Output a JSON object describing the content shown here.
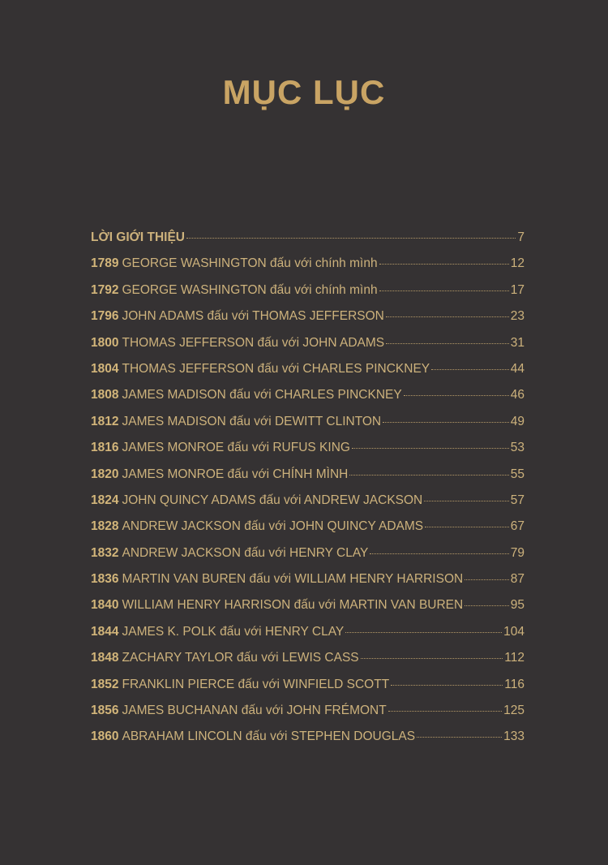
{
  "title": "MỤC LỤC",
  "colors": {
    "background": "#353233",
    "gold": "#c9a464"
  },
  "intro": {
    "label": "LỜI GIỚI THIỆU",
    "page": "7"
  },
  "entries": [
    {
      "year": "1789",
      "text": "GEORGE WASHINGTON đấu với chính mình",
      "page": "12"
    },
    {
      "year": "1792",
      "text": "GEORGE WASHINGTON đấu với chính mình",
      "page": "17"
    },
    {
      "year": "1796",
      "text": "JOHN ADAMS đấu với THOMAS JEFFERSON",
      "page": "23"
    },
    {
      "year": "1800",
      "text": "THOMAS JEFFERSON đấu với JOHN ADAMS",
      "page": "31"
    },
    {
      "year": "1804",
      "text": "THOMAS JEFFERSON đấu với CHARLES PINCKNEY",
      "page": "44"
    },
    {
      "year": "1808",
      "text": "JAMES MADISON đấu với CHARLES PINCKNEY",
      "page": "46"
    },
    {
      "year": "1812",
      "text": "JAMES MADISON đấu với DEWITT CLINTON",
      "page": "49"
    },
    {
      "year": "1816",
      "text": "JAMES MONROE đấu với RUFUS KING",
      "page": "53"
    },
    {
      "year": "1820",
      "text": "JAMES MONROE đấu với CHÍNH MÌNH",
      "page": "55"
    },
    {
      "year": "1824",
      "text": "JOHN QUINCY ADAMS đấu với ANDREW JACKSON",
      "page": "57"
    },
    {
      "year": "1828",
      "text": "ANDREW JACKSON đấu với JOHN QUINCY ADAMS",
      "page": "67"
    },
    {
      "year": "1832",
      "text": "ANDREW JACKSON đấu với HENRY CLAY",
      "page": "79"
    },
    {
      "year": "1836",
      "text": "MARTIN VAN BUREN đấu với WILLIAM HENRY HARRISON",
      "page": "87"
    },
    {
      "year": "1840",
      "text": "WILLIAM HENRY HARRISON đấu với MARTIN VAN BUREN",
      "page": "95"
    },
    {
      "year": "1844",
      "text": "JAMES K. POLK đấu với HENRY CLAY",
      "page": "104"
    },
    {
      "year": "1848",
      "text": "ZACHARY TAYLOR đấu với LEWIS CASS",
      "page": "112"
    },
    {
      "year": "1852",
      "text": "FRANKLIN PIERCE đấu với WINFIELD SCOTT",
      "page": "116"
    },
    {
      "year": "1856",
      "text": "JAMES BUCHANAN đấu với JOHN FRÉMONT",
      "page": "125"
    },
    {
      "year": "1860",
      "text": "ABRAHAM LINCOLN đấu với STEPHEN DOUGLAS",
      "page": "133"
    }
  ]
}
